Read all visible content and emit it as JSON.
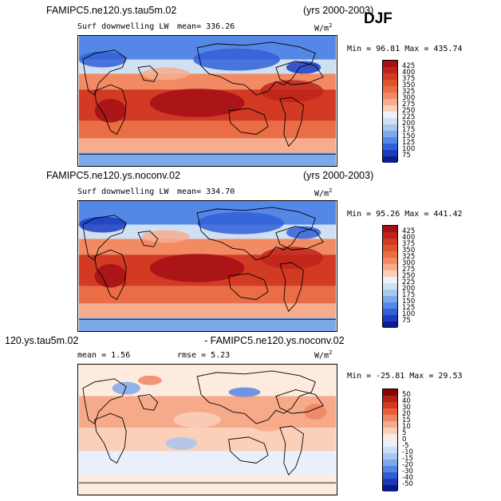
{
  "season": "DJF",
  "panel1": {
    "case": "FAMIPC5.ne120.ys.tau5m.02",
    "years": "(yrs 2000-2003)",
    "variable": "Surf downwelling LW",
    "mean": "mean= 336.26",
    "units": "W/m",
    "units_exp": "2",
    "minmax": "Min =  96.81 Max = 435.74",
    "cbar_labels": [
      "425",
      "400",
      "375",
      "350",
      "325",
      "300",
      "275",
      "250",
      "225",
      "200",
      "175",
      "150",
      "125",
      "100",
      "75"
    ]
  },
  "panel2": {
    "case": "FAMIPC5.ne120.ys.noconv.02",
    "years": "(yrs 2000-2003)",
    "variable": "Surf downwelling LW",
    "mean": "mean= 334.70",
    "units": "W/m",
    "units_exp": "2",
    "minmax": "Min =  95.26 Max = 441.42",
    "cbar_labels": [
      "425",
      "400",
      "375",
      "350",
      "325",
      "300",
      "275",
      "250",
      "225",
      "200",
      "175",
      "150",
      "125",
      "100",
      "75"
    ]
  },
  "panel3": {
    "case_left": "120.ys.tau5m.02",
    "case_right": "- FAMIPC5.ne120.ys.noconv.02",
    "mean": "mean =   1.56",
    "rmse": "rmse =   5.23",
    "units": "W/m",
    "units_exp": "2",
    "minmax": "Min = -25.81 Max =  29.53",
    "cbar_labels": [
      "50",
      "40",
      "30",
      "20",
      "15",
      "10",
      "5",
      "0",
      "-5",
      "-10",
      "-15",
      "-20",
      "-30",
      "-40",
      "-50"
    ]
  },
  "colors": {
    "abs_scale": [
      "#a50f15",
      "#c0231b",
      "#d23a23",
      "#e0532f",
      "#ea6d45",
      "#f28b63",
      "#f7ad8d",
      "#fbd0b9",
      "#eef2f8",
      "#cfe0f3",
      "#a9c8ee",
      "#7ca9ea",
      "#5487e6",
      "#3260d8",
      "#1b3bc0",
      "#0f1c8e"
    ],
    "diff_scale": [
      "#8b0000",
      "#b51f1a",
      "#d43a23",
      "#e5603a",
      "#ef8460",
      "#f6aa8a",
      "#fbd0bb",
      "#fdebe0",
      "#eaf0fb",
      "#cddff7",
      "#a8c6f0",
      "#7fa8ea",
      "#5585e2",
      "#2f5ed4",
      "#1a3ab8",
      "#0a1a8a"
    ]
  }
}
